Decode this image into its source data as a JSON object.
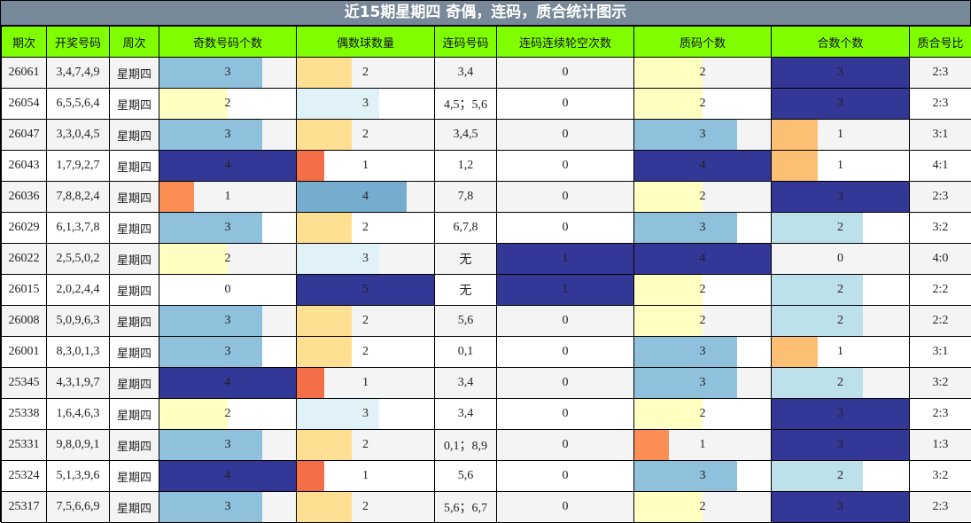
{
  "title": "近15期星期四 奇偶，连码，质合统计图示",
  "headers": [
    "期次",
    "开奖号码",
    "周次",
    "奇数号码个数",
    "偶数球数量",
    "连码号码",
    "连码连续轮空次数",
    "质码个数",
    "合数个数",
    "质合号比"
  ],
  "colors": {
    "title_bg": "#778899",
    "header_bg": "#7fff00",
    "row_alt_bg": "#f4f4f4",
    "bar_max": "#333795",
    "bar_blue_mid": "#8fc1dd",
    "bar_blue_4of5": "#76adcf",
    "bar_pale_yellow": "#ffffc2",
    "bar_pale_blue": "#e0f2f8",
    "bar_light_blue": "#bde1eb",
    "bar_tan": "#ffdf91",
    "bar_orange_red": "#f46f47",
    "bar_orange": "#fa8e55",
    "bar_light_orange": "#fdbf74"
  },
  "rows": [
    {
      "period": "26061",
      "numbers": "3,4,7,4,9",
      "weekday": "星期四",
      "odd": "3",
      "even": "2",
      "consec": "3,4",
      "consec_gap": "0",
      "prime": "2",
      "composite": "3",
      "ratio": "2:3"
    },
    {
      "period": "26054",
      "numbers": "6,5,5,6,4",
      "weekday": "星期四",
      "odd": "2",
      "even": "3",
      "consec": "4,5；5,6",
      "consec_gap": "0",
      "prime": "2",
      "composite": "3",
      "ratio": "2:3"
    },
    {
      "period": "26047",
      "numbers": "3,3,0,4,5",
      "weekday": "星期四",
      "odd": "3",
      "even": "2",
      "consec": "3,4,5",
      "consec_gap": "0",
      "prime": "3",
      "composite": "1",
      "ratio": "3:1"
    },
    {
      "period": "26043",
      "numbers": "1,7,9,2,7",
      "weekday": "星期四",
      "odd": "4",
      "even": "1",
      "consec": "1,2",
      "consec_gap": "0",
      "prime": "4",
      "composite": "1",
      "ratio": "4:1"
    },
    {
      "period": "26036",
      "numbers": "7,8,8,2,4",
      "weekday": "星期四",
      "odd": "1",
      "even": "4",
      "consec": "7,8",
      "consec_gap": "0",
      "prime": "2",
      "composite": "3",
      "ratio": "2:3"
    },
    {
      "period": "26029",
      "numbers": "6,1,3,7,8",
      "weekday": "星期四",
      "odd": "3",
      "even": "2",
      "consec": "6,7,8",
      "consec_gap": "0",
      "prime": "3",
      "composite": "2",
      "ratio": "3:2"
    },
    {
      "period": "26022",
      "numbers": "2,5,5,0,2",
      "weekday": "星期四",
      "odd": "2",
      "even": "3",
      "consec": "无",
      "consec_gap": "1",
      "prime": "4",
      "composite": "0",
      "ratio": "4:0"
    },
    {
      "period": "26015",
      "numbers": "2,0,2,4,4",
      "weekday": "星期四",
      "odd": "0",
      "even": "5",
      "consec": "无",
      "consec_gap": "1",
      "prime": "2",
      "composite": "2",
      "ratio": "2:2"
    },
    {
      "period": "26008",
      "numbers": "5,0,9,6,3",
      "weekday": "星期四",
      "odd": "3",
      "even": "2",
      "consec": "5,6",
      "consec_gap": "0",
      "prime": "2",
      "composite": "2",
      "ratio": "2:2"
    },
    {
      "period": "26001",
      "numbers": "8,3,0,1,3",
      "weekday": "星期四",
      "odd": "3",
      "even": "2",
      "consec": "0,1",
      "consec_gap": "0",
      "prime": "3",
      "composite": "1",
      "ratio": "3:1"
    },
    {
      "period": "25345",
      "numbers": "4,3,1,9,7",
      "weekday": "星期四",
      "odd": "4",
      "even": "1",
      "consec": "3,4",
      "consec_gap": "0",
      "prime": "3",
      "composite": "2",
      "ratio": "3:2"
    },
    {
      "period": "25338",
      "numbers": "1,6,4,6,3",
      "weekday": "星期四",
      "odd": "2",
      "even": "3",
      "consec": "3,4",
      "consec_gap": "0",
      "prime": "2",
      "composite": "3",
      "ratio": "2:3"
    },
    {
      "period": "25331",
      "numbers": "9,8,0,9,1",
      "weekday": "星期四",
      "odd": "3",
      "even": "2",
      "consec": "0,1；8,9",
      "consec_gap": "0",
      "prime": "1",
      "composite": "3",
      "ratio": "1:3"
    },
    {
      "period": "25324",
      "numbers": "5,1,3,9,6",
      "weekday": "星期四",
      "odd": "4",
      "even": "1",
      "consec": "5,6",
      "consec_gap": "0",
      "prime": "3",
      "composite": "2",
      "ratio": "3:2"
    },
    {
      "period": "25317",
      "numbers": "7,5,6,6,9",
      "weekday": "星期四",
      "odd": "3",
      "even": "2",
      "consec": "5,6；6,7",
      "consec_gap": "0",
      "prime": "2",
      "composite": "3",
      "ratio": "2:3"
    }
  ]
}
